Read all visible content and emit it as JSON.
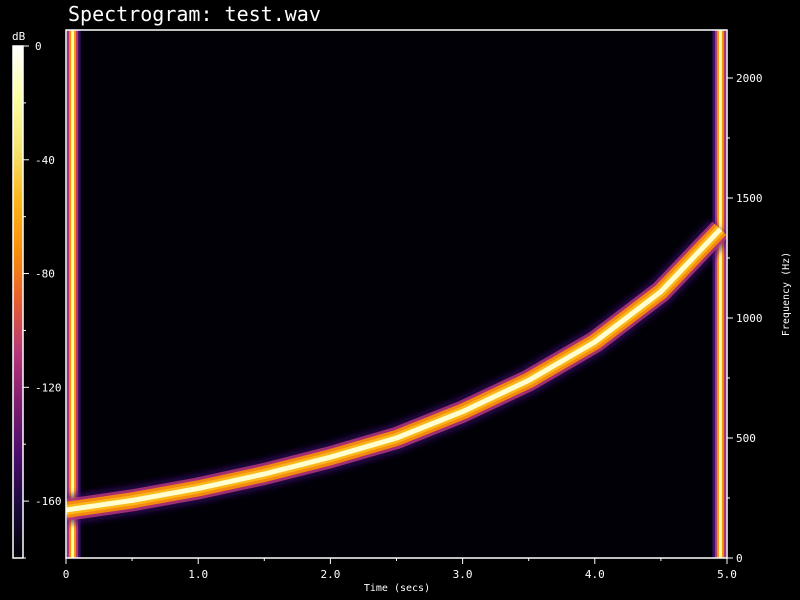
{
  "chart_data": {
    "type": "heatmap",
    "title": "Spectrogram: test.wav",
    "xlabel": "Time (secs)",
    "ylabel": "Frequency (Hz)",
    "xlim": [
      0,
      5.0
    ],
    "ylim": [
      0,
      2200
    ],
    "x_ticks": [
      0,
      1.0,
      2.0,
      3.0,
      4.0,
      5.0
    ],
    "x_tick_labels": [
      "0",
      "1.0",
      "2.0",
      "3.0",
      "4.0",
      "5.0"
    ],
    "x_minor_step": 0.5,
    "y_ticks": [
      0,
      500,
      1000,
      1500,
      2000
    ],
    "y_tick_labels": [
      "0",
      "500",
      "1000",
      "1500",
      "2000"
    ],
    "y_minor_step": 250,
    "grid": false,
    "colorbar": {
      "label": "dB",
      "range": [
        -180,
        0
      ],
      "ticks": [
        0,
        -40,
        -80,
        -120,
        -160
      ],
      "tick_labels": [
        "0",
        "-40",
        "-80",
        "-120",
        "-160"
      ],
      "minor_step": 20,
      "colors": [
        "#000004",
        "#1a0a3c",
        "#4a0c6b",
        "#7c1d6f",
        "#b5367a",
        "#e55c30",
        "#f98e09",
        "#fbb61a",
        "#f5e471",
        "#fcffa4",
        "#ffffff"
      ]
    },
    "series": [
      {
        "type": "sweep",
        "x": [
          0,
          0.5,
          1.0,
          1.5,
          2.0,
          2.5,
          3.0,
          3.5,
          4.0,
          4.5,
          4.95
        ],
        "y": [
          200,
          240,
          290,
          350,
          420,
          500,
          610,
          740,
          900,
          1110,
          1370
        ]
      }
    ],
    "transients": [
      {
        "x": 0.05,
        "y_range": [
          0,
          2200
        ]
      },
      {
        "x": 4.95,
        "y_range": [
          0,
          2200
        ]
      }
    ],
    "background_level_db": -170
  }
}
